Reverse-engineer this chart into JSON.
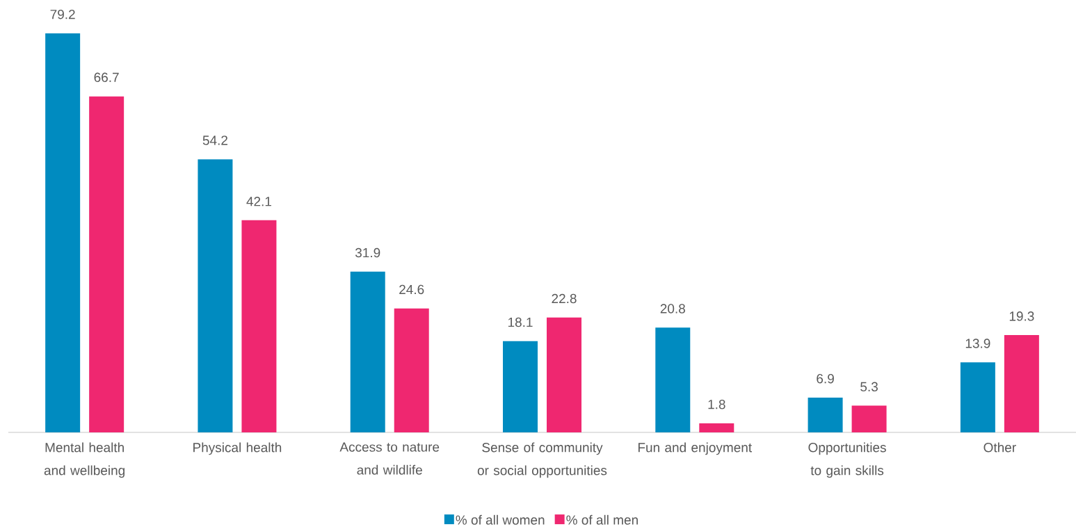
{
  "chart_data": {
    "type": "bar",
    "categories": [
      "Mental health and wellbeing",
      "Physical health",
      "Access to nature and wildlife",
      "Sense of community or social opportunities",
      "Fun and enjoyment",
      "Opportunities to gain skills",
      "Other"
    ],
    "series": [
      {
        "name": "% of all women",
        "color": "#008bc0",
        "values": [
          79.2,
          54.2,
          31.9,
          18.1,
          20.8,
          6.9,
          13.9
        ]
      },
      {
        "name": "% of all men",
        "color": "#ef2770",
        "values": [
          66.7,
          42.1,
          24.6,
          22.8,
          1.8,
          5.3,
          19.3
        ]
      }
    ],
    "data_labels": true,
    "legend": "bottom"
  }
}
